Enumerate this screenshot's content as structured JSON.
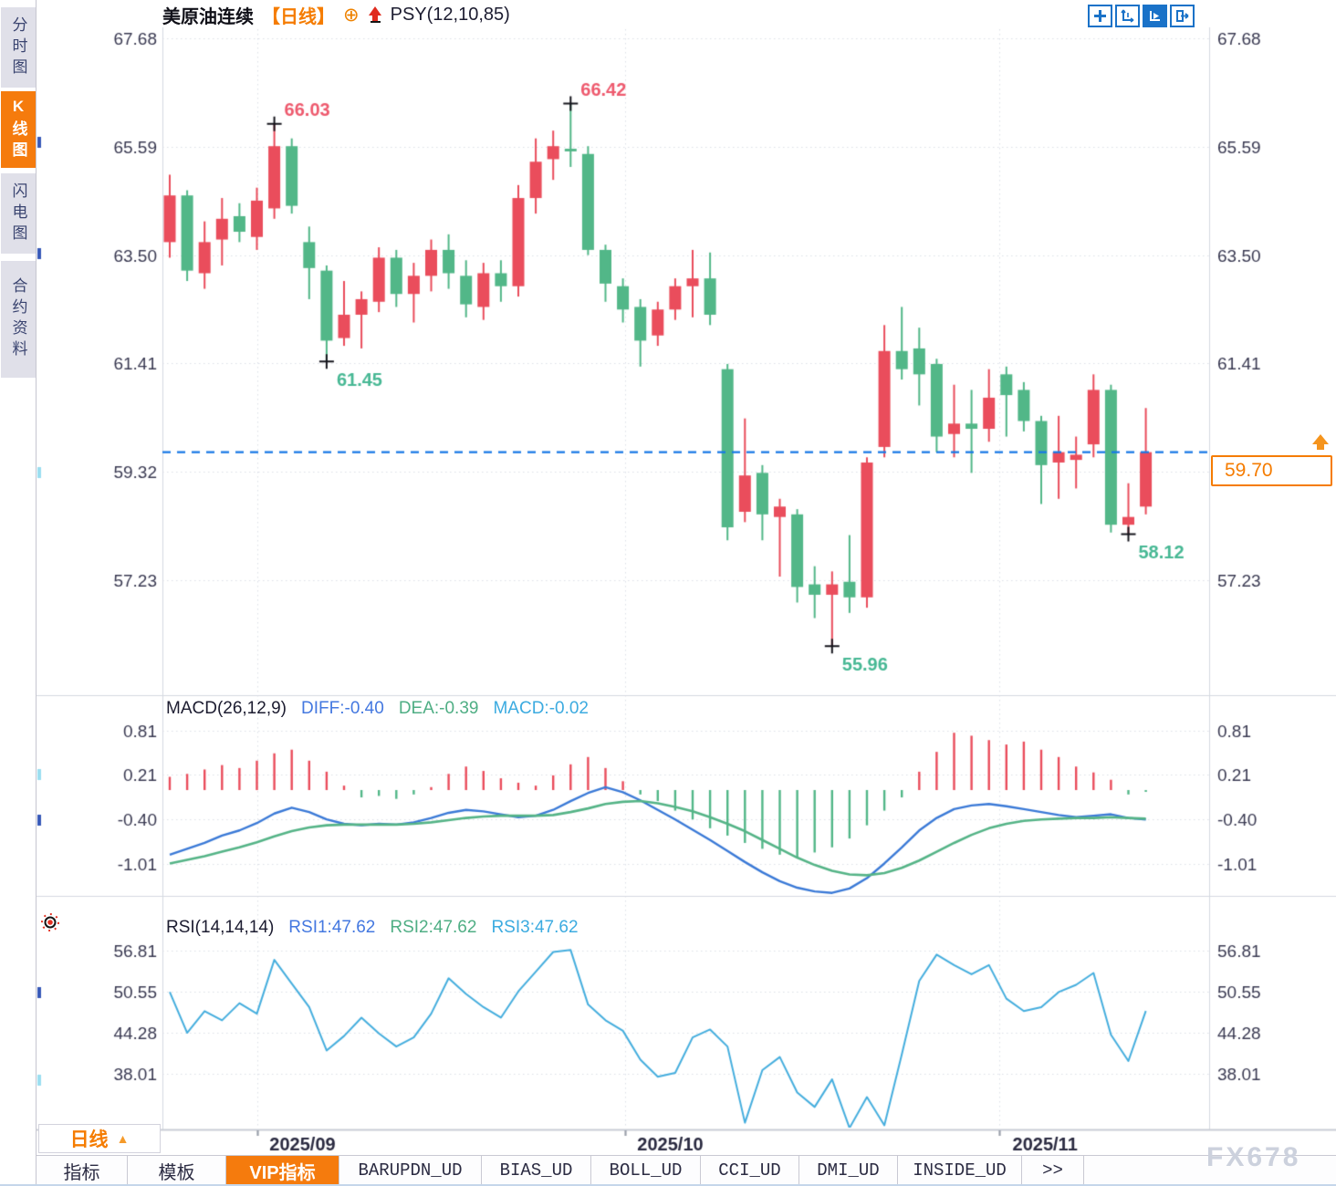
{
  "sidebar": {
    "items": [
      {
        "label": "分时图",
        "active": false
      },
      {
        "label": "K线图",
        "active": true
      },
      {
        "label": "闪电图",
        "active": false
      },
      {
        "label": "合约资料",
        "active": false
      }
    ]
  },
  "header": {
    "title": "美原油连续",
    "period_tag": "【日线】",
    "indicator_label": "PSY(12,10,85)"
  },
  "toolbar": {
    "icons": [
      {
        "name": "crosshair-move-icon",
        "active": false
      },
      {
        "name": "axis-range-icon",
        "active": false
      },
      {
        "name": "axis-pointer-icon",
        "active": true
      },
      {
        "name": "export-pane-icon",
        "active": false
      }
    ]
  },
  "macd_header": {
    "name": "MACD(26,12,9)",
    "diff": "DIFF:-0.40",
    "dea": "DEA:-0.39",
    "macd": "MACD:-0.02"
  },
  "rsi_header": {
    "name": "RSI(14,14,14)",
    "rsi1": "RSI1:47.62",
    "rsi2": "RSI2:47.62",
    "rsi3": "RSI3:47.62"
  },
  "price_marker": {
    "value": "59.70"
  },
  "period_button": {
    "label": "日线",
    "arrow": "▲"
  },
  "tabs": [
    {
      "label": "指标",
      "active": false,
      "mono": false
    },
    {
      "label": "模板",
      "active": false,
      "mono": false
    },
    {
      "label": "VIP指标",
      "active": true,
      "mono": false
    },
    {
      "label": "BARUPDN_UD",
      "active": false,
      "mono": true
    },
    {
      "label": "BIAS_UD",
      "active": false,
      "mono": true
    },
    {
      "label": "BOLL_UD",
      "active": false,
      "mono": true
    },
    {
      "label": "CCI_UD",
      "active": false,
      "mono": true
    },
    {
      "label": "DMI_UD",
      "active": false,
      "mono": true
    },
    {
      "label": "INSIDE_UD",
      "active": false,
      "mono": true
    },
    {
      "label": ">>",
      "active": false,
      "mono": true
    }
  ],
  "watermark": {
    "text": "FX678"
  },
  "colors": {
    "up": "#ea4d5c",
    "down": "#52b788",
    "diff_line": "#3b7ad7",
    "dea_line": "#55b487",
    "rsi_line": "#45aede",
    "dashed_line": "#1678e6",
    "axis_text": "#3a3a52",
    "month_text": "#2a2a40",
    "annotation_high": "#ee5a6e",
    "annotation_low": "#47b894",
    "accent_orange": "#f57c00",
    "grid": "#dcdfe8"
  },
  "chart_data": {
    "type": "candlestick+macd+rsi",
    "symbol": "美原油连续",
    "period": "日线",
    "overlay_indicator": "PSY(12,10,85)",
    "x_month_labels": [
      "2025/09",
      "2025/10",
      "2025/11"
    ],
    "x_month_positions": [
      5.0,
      26.1,
      47.6
    ],
    "main": {
      "ticks": [
        67.68,
        65.59,
        63.5,
        61.41,
        59.32,
        57.23
      ],
      "current_price": 59.7,
      "annotations": [
        {
          "index": 6,
          "type": "high",
          "value": 66.03
        },
        {
          "index": 23,
          "type": "high",
          "value": 66.42
        },
        {
          "index": 9,
          "type": "low",
          "value": 61.45
        },
        {
          "index": 38,
          "type": "low",
          "value": 55.96
        },
        {
          "index": 55,
          "type": "low",
          "value": 58.12
        }
      ],
      "candles": [
        [
          63.75,
          65.05,
          63.45,
          64.65
        ],
        [
          64.65,
          64.75,
          63.0,
          63.2
        ],
        [
          63.15,
          64.15,
          62.85,
          63.75
        ],
        [
          63.8,
          64.6,
          63.3,
          64.2
        ],
        [
          64.25,
          64.5,
          63.75,
          63.95
        ],
        [
          63.85,
          64.8,
          63.6,
          64.55
        ],
        [
          64.4,
          66.03,
          64.2,
          65.6
        ],
        [
          65.6,
          65.75,
          64.3,
          64.45
        ],
        [
          63.75,
          64.05,
          62.65,
          63.25
        ],
        [
          63.2,
          63.3,
          61.45,
          61.85
        ],
        [
          61.9,
          63.0,
          61.75,
          62.35
        ],
        [
          62.35,
          62.8,
          61.7,
          62.65
        ],
        [
          62.6,
          63.65,
          62.4,
          63.45
        ],
        [
          63.45,
          63.6,
          62.5,
          62.75
        ],
        [
          62.75,
          63.35,
          62.2,
          63.1
        ],
        [
          63.1,
          63.8,
          62.8,
          63.6
        ],
        [
          63.6,
          63.9,
          62.85,
          63.15
        ],
        [
          63.1,
          63.4,
          62.3,
          62.55
        ],
        [
          62.5,
          63.35,
          62.25,
          63.15
        ],
        [
          63.15,
          63.4,
          62.6,
          62.9
        ],
        [
          62.9,
          64.85,
          62.7,
          64.6
        ],
        [
          64.6,
          65.75,
          64.3,
          65.3
        ],
        [
          65.35,
          65.9,
          64.95,
          65.6
        ],
        [
          65.55,
          66.42,
          65.2,
          65.5
        ],
        [
          65.45,
          65.6,
          63.5,
          63.6
        ],
        [
          63.6,
          63.7,
          62.6,
          62.95
        ],
        [
          62.9,
          63.05,
          62.2,
          62.45
        ],
        [
          62.5,
          62.65,
          61.35,
          61.85
        ],
        [
          61.95,
          62.6,
          61.75,
          62.45
        ],
        [
          62.45,
          63.05,
          62.25,
          62.9
        ],
        [
          62.9,
          63.6,
          62.3,
          63.05
        ],
        [
          63.05,
          63.55,
          62.15,
          62.35
        ],
        [
          61.3,
          61.4,
          58.0,
          58.25
        ],
        [
          58.55,
          60.35,
          58.35,
          59.25
        ],
        [
          59.3,
          59.45,
          58.0,
          58.5
        ],
        [
          58.45,
          58.8,
          57.3,
          58.65
        ],
        [
          58.5,
          58.6,
          56.8,
          57.1
        ],
        [
          57.15,
          57.5,
          56.5,
          56.95
        ],
        [
          56.95,
          57.4,
          55.96,
          57.15
        ],
        [
          57.2,
          58.1,
          56.6,
          56.9
        ],
        [
          56.9,
          59.6,
          56.7,
          59.5
        ],
        [
          59.8,
          62.15,
          59.6,
          61.65
        ],
        [
          61.65,
          62.5,
          61.1,
          61.3
        ],
        [
          61.7,
          62.1,
          60.6,
          61.2
        ],
        [
          61.4,
          61.5,
          59.7,
          60.0
        ],
        [
          60.05,
          61.0,
          59.6,
          60.25
        ],
        [
          60.25,
          60.9,
          59.3,
          60.15
        ],
        [
          60.15,
          61.3,
          59.9,
          60.75
        ],
        [
          61.2,
          61.35,
          60.0,
          60.8
        ],
        [
          60.9,
          61.05,
          60.1,
          60.3
        ],
        [
          60.3,
          60.4,
          58.7,
          59.45
        ],
        [
          59.5,
          60.4,
          58.8,
          59.7
        ],
        [
          59.55,
          60.0,
          59.0,
          59.65
        ],
        [
          59.85,
          61.2,
          59.6,
          60.9
        ],
        [
          60.9,
          61.0,
          58.15,
          58.3
        ],
        [
          58.3,
          59.1,
          58.12,
          58.45
        ],
        [
          58.65,
          60.55,
          58.5,
          59.7
        ]
      ]
    },
    "macd": {
      "ticks": [
        0.81,
        0.21,
        -0.4,
        -1.01
      ],
      "hist": [
        0.18,
        0.22,
        0.28,
        0.34,
        0.3,
        0.4,
        0.5,
        0.55,
        0.4,
        0.25,
        0.06,
        -0.1,
        -0.08,
        -0.12,
        -0.06,
        0.04,
        0.22,
        0.32,
        0.26,
        0.16,
        0.1,
        0.06,
        0.2,
        0.35,
        0.45,
        0.3,
        0.12,
        -0.06,
        -0.15,
        -0.28,
        -0.4,
        -0.52,
        -0.62,
        -0.72,
        -0.8,
        -0.88,
        -0.92,
        -0.85,
        -0.78,
        -0.66,
        -0.48,
        -0.28,
        -0.1,
        0.25,
        0.52,
        0.78,
        0.74,
        0.68,
        0.62,
        0.66,
        0.55,
        0.45,
        0.32,
        0.24,
        0.14,
        -0.06,
        -0.02
      ],
      "diff": [
        -0.88,
        -0.8,
        -0.72,
        -0.62,
        -0.55,
        -0.45,
        -0.32,
        -0.24,
        -0.3,
        -0.4,
        -0.46,
        -0.48,
        -0.46,
        -0.47,
        -0.44,
        -0.38,
        -0.31,
        -0.27,
        -0.29,
        -0.33,
        -0.37,
        -0.35,
        -0.27,
        -0.15,
        -0.04,
        0.04,
        -0.03,
        -0.14,
        -0.27,
        -0.4,
        -0.54,
        -0.68,
        -0.83,
        -0.98,
        -1.12,
        -1.24,
        -1.33,
        -1.38,
        -1.4,
        -1.34,
        -1.2,
        -1.0,
        -0.78,
        -0.55,
        -0.38,
        -0.26,
        -0.21,
        -0.19,
        -0.22,
        -0.26,
        -0.3,
        -0.34,
        -0.37,
        -0.35,
        -0.33,
        -0.38,
        -0.4
      ],
      "dea": [
        -1.0,
        -0.95,
        -0.9,
        -0.84,
        -0.78,
        -0.71,
        -0.63,
        -0.56,
        -0.51,
        -0.48,
        -0.47,
        -0.47,
        -0.47,
        -0.47,
        -0.46,
        -0.44,
        -0.41,
        -0.38,
        -0.36,
        -0.35,
        -0.35,
        -0.35,
        -0.34,
        -0.3,
        -0.25,
        -0.19,
        -0.16,
        -0.15,
        -0.18,
        -0.23,
        -0.29,
        -0.37,
        -0.46,
        -0.56,
        -0.68,
        -0.8,
        -0.92,
        -1.02,
        -1.1,
        -1.15,
        -1.16,
        -1.13,
        -1.06,
        -0.96,
        -0.84,
        -0.72,
        -0.61,
        -0.52,
        -0.46,
        -0.42,
        -0.4,
        -0.39,
        -0.38,
        -0.38,
        -0.37,
        -0.38,
        -0.39
      ]
    },
    "rsi": {
      "ticks": [
        56.81,
        50.55,
        44.28,
        38.01
      ],
      "values": [
        50.5,
        44.3,
        47.6,
        46.2,
        48.8,
        47.2,
        55.4,
        51.8,
        48.2,
        41.6,
        43.8,
        46.6,
        44.2,
        42.2,
        43.6,
        47.2,
        52.6,
        50.2,
        48.2,
        46.6,
        50.6,
        53.6,
        56.6,
        56.9,
        48.6,
        46.2,
        44.6,
        40.2,
        37.6,
        38.2,
        43.6,
        44.8,
        42.2,
        30.6,
        38.6,
        40.6,
        35.2,
        33.0,
        37.2,
        29.8,
        34.5,
        30.2,
        41.0,
        52.2,
        56.2,
        54.6,
        53.2,
        54.6,
        49.5,
        47.6,
        48.2,
        50.5,
        51.6,
        53.4,
        44.0,
        40.0,
        47.62
      ]
    }
  }
}
